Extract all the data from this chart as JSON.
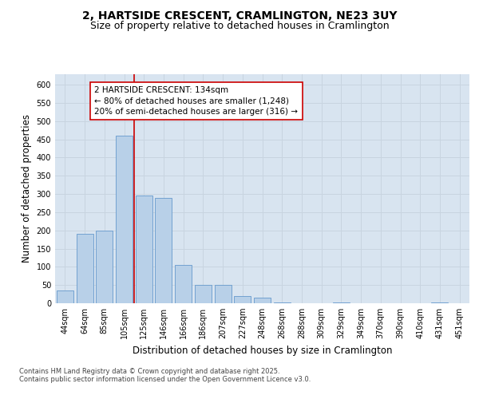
{
  "title_line1": "2, HARTSIDE CRESCENT, CRAMLINGTON, NE23 3UY",
  "title_line2": "Size of property relative to detached houses in Cramlington",
  "xlabel": "Distribution of detached houses by size in Cramlington",
  "ylabel": "Number of detached properties",
  "footnote": "Contains HM Land Registry data © Crown copyright and database right 2025.\nContains public sector information licensed under the Open Government Licence v3.0.",
  "categories": [
    "44sqm",
    "64sqm",
    "85sqm",
    "105sqm",
    "125sqm",
    "146sqm",
    "166sqm",
    "186sqm",
    "207sqm",
    "227sqm",
    "248sqm",
    "268sqm",
    "288sqm",
    "309sqm",
    "329sqm",
    "349sqm",
    "370sqm",
    "390sqm",
    "410sqm",
    "431sqm",
    "451sqm"
  ],
  "values": [
    35,
    190,
    200,
    460,
    295,
    290,
    105,
    50,
    50,
    20,
    15,
    2,
    0,
    0,
    2,
    0,
    0,
    0,
    0,
    2,
    0
  ],
  "bar_color": "#b8d0e8",
  "bar_edge_color": "#6699cc",
  "grid_color": "#c8d4e0",
  "bg_color": "#d8e4f0",
  "annotation_box_color": "#cc0000",
  "vline_color": "#cc0000",
  "vline_x": 3.5,
  "annotation_text": "2 HARTSIDE CRESCENT: 134sqm\n← 80% of detached houses are smaller (1,248)\n20% of semi-detached houses are larger (316) →",
  "ylim": [
    0,
    630
  ],
  "yticks": [
    0,
    50,
    100,
    150,
    200,
    250,
    300,
    350,
    400,
    450,
    500,
    550,
    600
  ],
  "title_fontsize": 10,
  "subtitle_fontsize": 9,
  "axis_label_fontsize": 8.5,
  "tick_fontsize": 7,
  "annotation_fontsize": 7.5,
  "footnote_fontsize": 6
}
